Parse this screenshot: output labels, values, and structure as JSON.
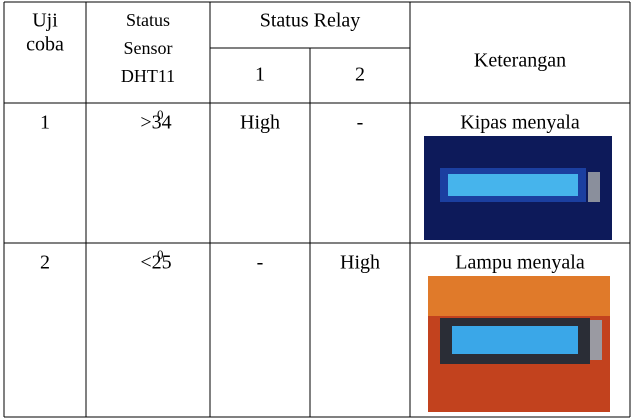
{
  "table": {
    "header": {
      "trial": [
        "Uji",
        "coba"
      ],
      "sensor": [
        "Status",
        "Sensor",
        "DHT11"
      ],
      "relay": "Status Relay",
      "relay_cols": [
        "1",
        "2"
      ],
      "note": "Keterangan"
    },
    "rows": [
      {
        "trial": "1",
        "sensor": ">34",
        "sensor_sup": "0",
        "relay1": "High",
        "relay2": "-",
        "note": "Kipas menyala"
      },
      {
        "trial": "2",
        "sensor": "<25",
        "sensor_sup": "0",
        "relay1": "-",
        "relay2": "High",
        "note": "Lampu menyala"
      }
    ]
  }
}
